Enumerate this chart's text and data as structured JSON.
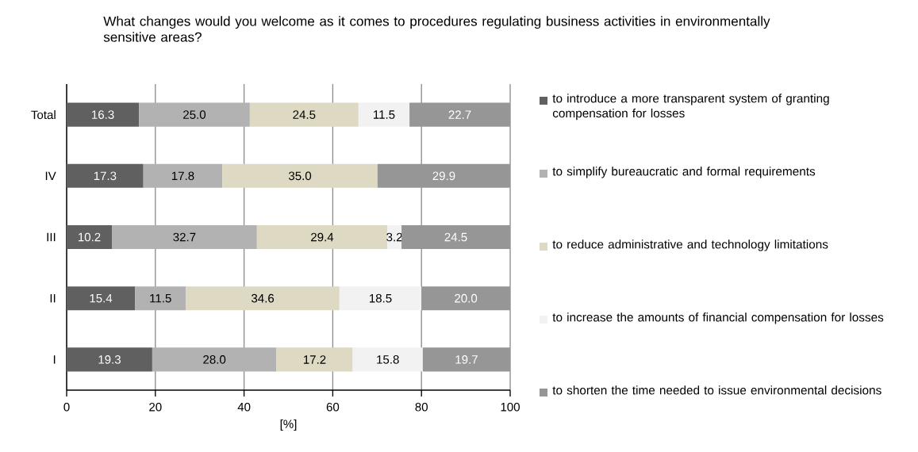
{
  "chart_data": {
    "type": "bar",
    "orientation": "horizontal",
    "stacked": true,
    "title": "What changes would you welcome as it comes to procedures regulating business activities in environmentally sensitive areas?",
    "xlabel": "[%]",
    "categories": [
      "Total",
      "IV",
      "III",
      "II",
      "I"
    ],
    "series": [
      {
        "name": "to  introduce a more transparent system of granting compensation for losses",
        "color": "#606060",
        "values": [
          16.3,
          17.3,
          10.2,
          15.4,
          19.3
        ],
        "value_labels": [
          "16.3",
          "17.3",
          "10.2",
          "15.4",
          "19.3"
        ]
      },
      {
        "name": "to simplify bureaucratic and formal requirements",
        "color": "#b2b2b2",
        "values": [
          25.0,
          17.8,
          32.7,
          11.5,
          28.0
        ],
        "value_labels": [
          "25.0",
          "17.8",
          "32.7",
          "11.5",
          "28.0"
        ]
      },
      {
        "name": "to reduce administrative and technology limitations",
        "color": "#ddd9c3",
        "values": [
          24.5,
          35.0,
          29.4,
          34.6,
          17.2
        ],
        "value_labels": [
          "24.5",
          "35.0",
          "29.4",
          "34.6",
          "17.2"
        ]
      },
      {
        "name": "to increase the amounts of financial compensation for losses",
        "color": "#f2f2f2",
        "values": [
          11.5,
          null,
          3.2,
          18.5,
          15.8
        ],
        "value_labels": [
          "11.5",
          null,
          "3.2",
          "18.5",
          "15.8"
        ]
      },
      {
        "name": "to shorten the time needed to issue environmental decisions",
        "color": "#969696",
        "values": [
          22.7,
          29.9,
          24.5,
          20.0,
          19.7
        ],
        "value_labels": [
          "22.7",
          "29.9",
          "24.5",
          "20.0",
          "19.7"
        ]
      }
    ],
    "xlim": [
      0,
      100
    ],
    "xticks": [
      0,
      20,
      40,
      60,
      80,
      100
    ],
    "grid": "x",
    "legend": "right"
  }
}
